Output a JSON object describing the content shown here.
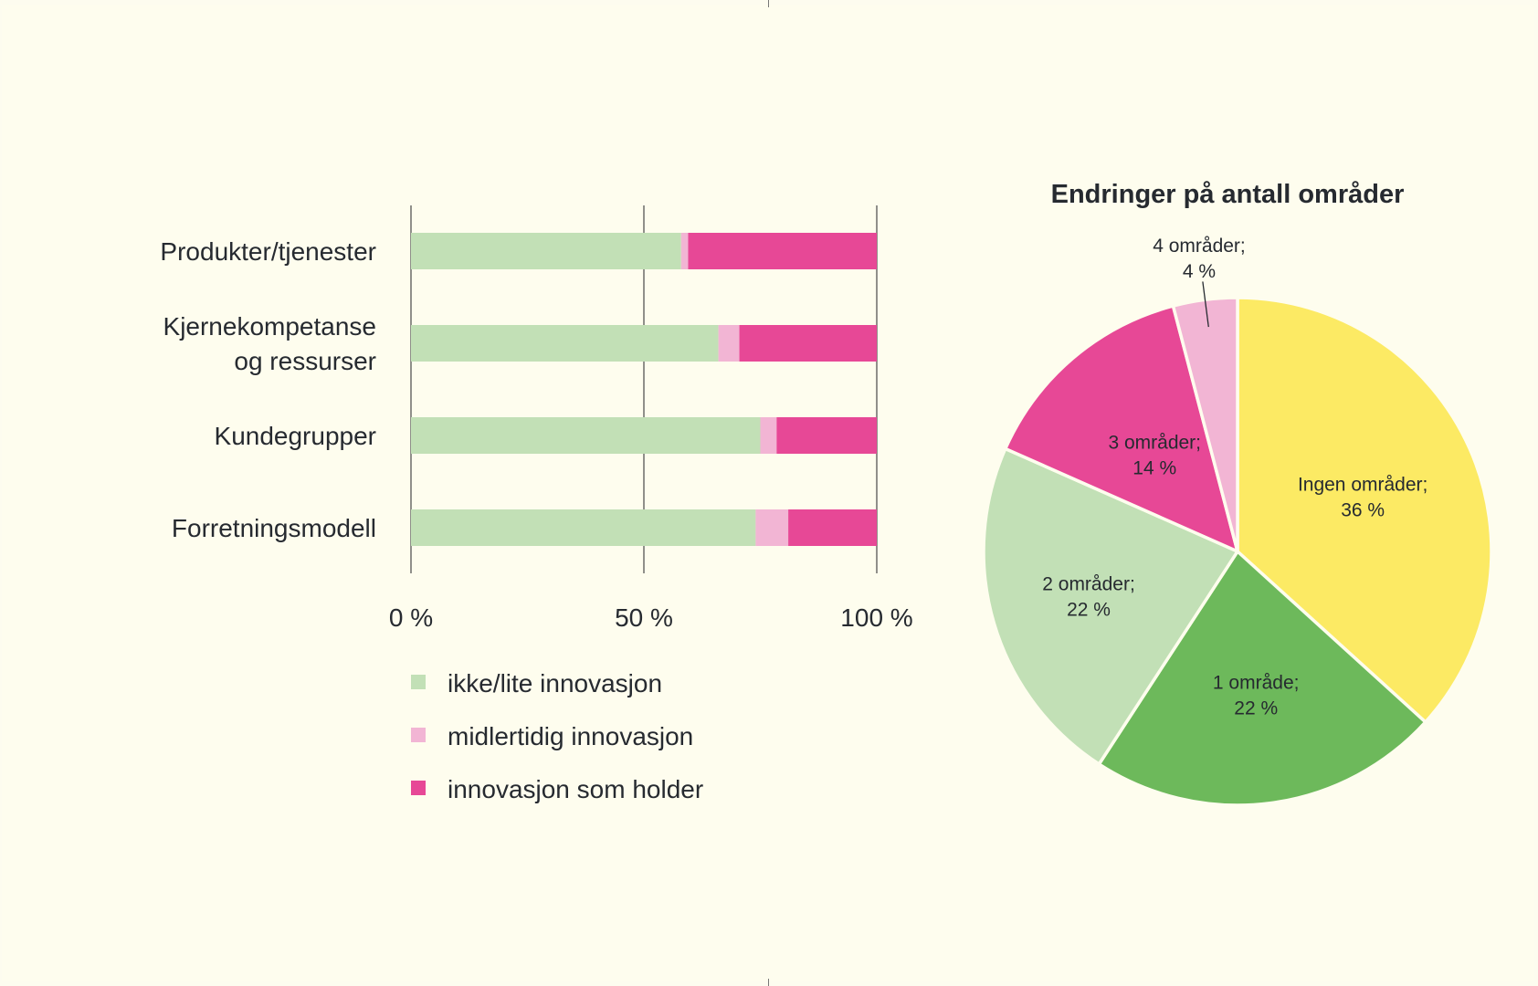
{
  "colors": {
    "ikke": "#c2e0b6",
    "midlertidig": "#f2b5d4",
    "holder": "#e74896",
    "ingen": "#fcea64",
    "en": "#6db95b",
    "to": "#c2e0b6",
    "tre": "#e74896",
    "fire": "#f2b5d4",
    "axis": "#555555"
  },
  "chart_data": [
    {
      "type": "bar",
      "orientation": "horizontal",
      "stacked": true,
      "categories": [
        [
          "Produkter/tjenester"
        ],
        [
          "Kjernekompetanse",
          "og ressurser"
        ],
        [
          "Kundegrupper"
        ],
        [
          "Forretningsmodell"
        ]
      ],
      "series": [
        {
          "name": "ikke/lite innovasjon",
          "color_key": "ikke",
          "values": [
            58,
            66,
            75,
            74
          ]
        },
        {
          "name": "midlertidig innovasjon",
          "color_key": "midlertidig",
          "values": [
            1.5,
            4.5,
            3.5,
            7
          ]
        },
        {
          "name": "innovasjon som holder",
          "color_key": "holder",
          "values": [
            40.5,
            29.5,
            21.5,
            19
          ]
        }
      ],
      "xlim": [
        0,
        100
      ],
      "ticks": [
        0,
        50,
        100
      ],
      "tick_labels": [
        "0 %",
        "50 %",
        "100 %"
      ],
      "grid": true,
      "legend_position": "bottom"
    },
    {
      "type": "pie",
      "title": "Endringer på antall områder",
      "slices": [
        {
          "label": [
            "Ingen områder;",
            "36 %"
          ],
          "value": 36,
          "color_key": "ingen"
        },
        {
          "label": [
            "1 område;",
            "22 %"
          ],
          "value": 22,
          "color_key": "en"
        },
        {
          "label": [
            "2 områder;",
            "22 %"
          ],
          "value": 22,
          "color_key": "to"
        },
        {
          "label": [
            "3 områder;",
            "14 %"
          ],
          "value": 14,
          "color_key": "tre"
        },
        {
          "label": [
            "4 områder;",
            "4 %"
          ],
          "value": 4,
          "color_key": "fire"
        }
      ]
    }
  ]
}
